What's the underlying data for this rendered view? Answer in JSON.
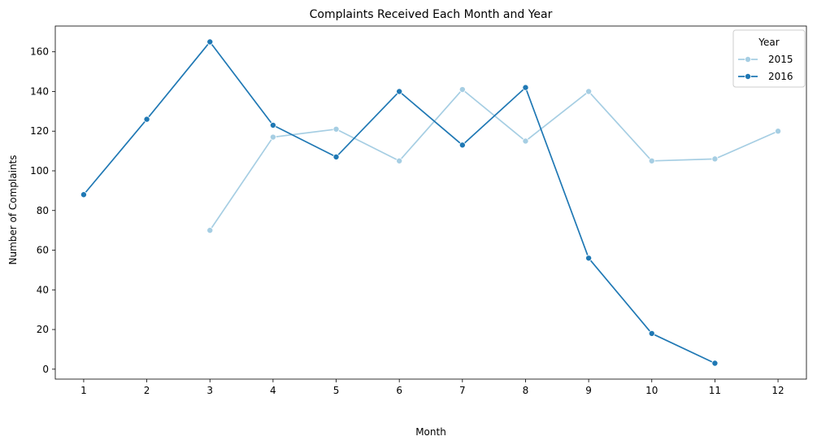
{
  "chart_data": {
    "type": "line",
    "title": "Complaints Received Each Month and Year",
    "xlabel": "Month",
    "ylabel": "Number of Complaints",
    "x_ticks": [
      "1",
      "2",
      "3",
      "4",
      "5",
      "6",
      "7",
      "8",
      "9",
      "10",
      "11",
      "12"
    ],
    "y_ticks": [
      "0",
      "20",
      "40",
      "60",
      "80",
      "100",
      "120",
      "140",
      "160"
    ],
    "xlim": [
      0.55,
      12.45
    ],
    "ylim": [
      -5,
      173
    ],
    "grid": false,
    "legend": {
      "title": "Year",
      "placement": "top-right"
    },
    "series": [
      {
        "name": "2015",
        "color": "#a6cee3",
        "x": [
          3,
          4,
          5,
          6,
          7,
          8,
          9,
          10,
          11,
          12
        ],
        "y": [
          70,
          117,
          121,
          105,
          141,
          115,
          140,
          105,
          106,
          120
        ]
      },
      {
        "name": "2016",
        "color": "#1f78b4",
        "x": [
          1,
          2,
          3,
          4,
          5,
          6,
          7,
          8,
          9,
          10,
          11
        ],
        "y": [
          88,
          126,
          165,
          123,
          107,
          140,
          113,
          142,
          56,
          18,
          3
        ]
      }
    ]
  }
}
